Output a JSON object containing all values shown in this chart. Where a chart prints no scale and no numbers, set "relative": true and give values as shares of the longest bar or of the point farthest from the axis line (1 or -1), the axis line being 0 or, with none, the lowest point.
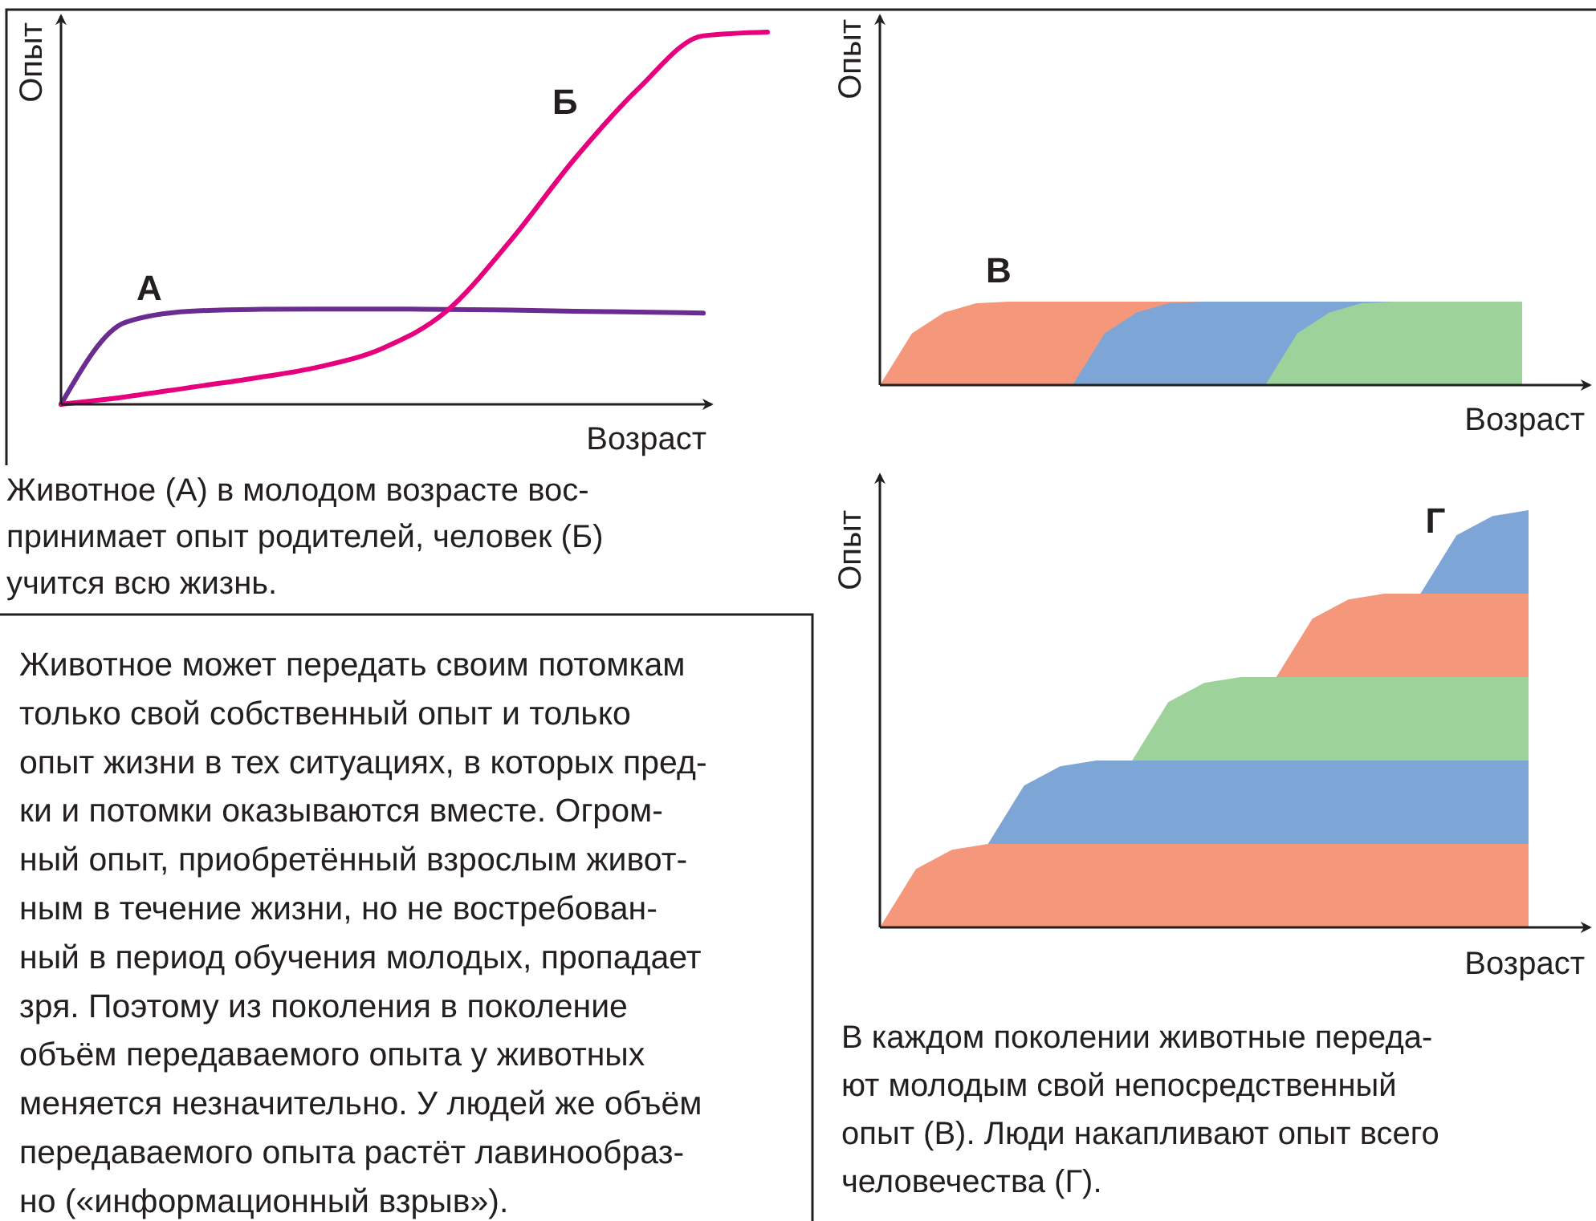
{
  "chart_data": [
    {
      "type": "line",
      "relative": true,
      "xlabel": "Возраст",
      "ylabel": "Опыт",
      "categories": [
        null,
        null,
        null,
        null,
        null,
        null,
        null,
        null,
        null,
        null,
        null,
        null
      ],
      "series": [
        {
          "name": "А",
          "color": "#6a2c91",
          "values": [
            0,
            0.22,
            0.25,
            0.255,
            0.256,
            0.256,
            0.255,
            0.253,
            0.25,
            0.248,
            0.245,
            null
          ]
        },
        {
          "name": "Б",
          "color": "#e6007e",
          "values": [
            0,
            0.02,
            0.045,
            0.07,
            0.1,
            0.15,
            0.25,
            0.44,
            0.66,
            0.85,
            0.99,
            1
          ]
        }
      ],
      "annotations": [
        "Животное (А) в молодом возрасте вос-\nпринимает опыт родителей, человек (Б)\nучится всю жизнь."
      ]
    },
    {
      "type": "area",
      "relative": true,
      "xlabel": "Возраст",
      "ylabel": "Опыт",
      "categories": [
        null,
        null,
        null,
        null,
        null,
        null,
        null,
        null,
        null,
        null,
        null,
        null,
        null,
        null,
        null,
        null,
        null,
        null,
        null,
        null,
        null
      ],
      "series": [
        {
          "color": "#f4977a",
          "values": [
            0,
            0.62,
            0.87,
            0.98,
            1,
            1,
            1,
            1,
            1,
            1,
            1,
            null,
            null,
            null,
            null,
            null,
            null,
            null,
            null,
            null,
            null
          ]
        },
        {
          "color": "#7da6d6",
          "values": [
            0,
            0,
            0,
            0,
            0,
            0,
            0,
            0.62,
            0.87,
            0.98,
            1,
            1,
            1,
            1,
            1,
            1,
            1,
            null,
            null,
            null,
            null
          ]
        },
        {
          "color": "#9dd29b",
          "values": [
            0,
            0,
            0,
            0,
            0,
            0,
            0,
            0,
            0,
            0,
            0,
            0,
            0,
            0.62,
            0.87,
            0.98,
            1,
            1,
            1,
            1,
            1
          ]
        }
      ],
      "annotations": [
        "В"
      ]
    },
    {
      "type": "area",
      "relative": true,
      "stacked": true,
      "xlabel": "Возраст",
      "ylabel": "Опыт",
      "categories": [
        null,
        null,
        null,
        null,
        null,
        null,
        null,
        null,
        null,
        null,
        null,
        null,
        null,
        null,
        null,
        null,
        null,
        null,
        null
      ],
      "series": [
        {
          "color": "#f4977a",
          "values": [
            0,
            0.14,
            0.186,
            0.2,
            0.2,
            0.2,
            0.2,
            0.2,
            0.2,
            0.2,
            0.2,
            0.2,
            0.2,
            0.2,
            0.2,
            0.2,
            0.2,
            0.2,
            0.2
          ]
        },
        {
          "color": "#7da6d6",
          "values": [
            0,
            0,
            0,
            0,
            0.14,
            0.186,
            0.2,
            0.2,
            0.2,
            0.2,
            0.2,
            0.2,
            0.2,
            0.2,
            0.2,
            0.2,
            0.2,
            0.2,
            0.2
          ]
        },
        {
          "color": "#9dd29b",
          "values": [
            0,
            0,
            0,
            0,
            0,
            0,
            0,
            0,
            0.14,
            0.186,
            0.2,
            0.2,
            0.2,
            0.2,
            0.2,
            0.2,
            0.2,
            0.2,
            0.2
          ]
        },
        {
          "color": "#f4977a",
          "values": [
            0,
            0,
            0,
            0,
            0,
            0,
            0,
            0,
            0,
            0,
            0,
            0,
            0.14,
            0.186,
            0.2,
            0.2,
            0.2,
            0.2,
            0.2
          ]
        },
        {
          "color": "#7da6d6",
          "values": [
            0,
            0,
            0,
            0,
            0,
            0,
            0,
            0,
            0,
            0,
            0,
            0,
            0,
            0,
            0,
            0,
            0.14,
            0.186,
            0.2
          ]
        }
      ],
      "annotations": [
        "Г",
        "В каждом поколении животные переда-\nют молодым свой непосредственный\nопыт (В). Люди накапливают опыт всего\nчеловечества (Г)."
      ]
    },
    {
      "type": "other",
      "annotations": [
        "Животное может передать своим потомкам\nтолько свой собственный опыт и только\nопыт жизни в тех ситуациях, в которых пред-\nки и потомки оказываются вместе. Огром-\nный опыт, приобретённый взрослым живот-\nным в течение жизни, но не востребован-\nный в период обучения молодых, пропадает\nзря. Поэтому из поколения в поколение\nобъём передаваемого опыта у животных\nменяется незначительно. У людей же объём\nпередаваемого опыта растёт лавинообраз-\nно («информационный взрыв»)."
      ]
    }
  ]
}
